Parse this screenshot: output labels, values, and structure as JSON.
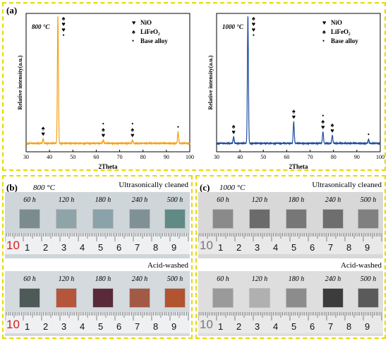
{
  "panel_a": {
    "label": "(a)",
    "chart_data": [
      {
        "type": "line",
        "title": "800 °C",
        "xlabel": "2Theta",
        "ylabel": "Relative intensity(a.u.)",
        "xlim": [
          30,
          100
        ],
        "xticks": [
          "30",
          "40",
          "50",
          "60",
          "70",
          "80",
          "90",
          "100"
        ],
        "color": "#f5a219",
        "legend": [
          {
            "symbol": "♥",
            "label": "NiO"
          },
          {
            "symbol": "♠",
            "label": "LiFeO₂"
          },
          {
            "symbol": "•",
            "label": "Base alloy"
          }
        ],
        "peaks": [
          {
            "x": 37.3,
            "h": 0.035,
            "markers": "♠♥"
          },
          {
            "x": 43.6,
            "h": 1.0,
            "markers": "♠♥♥•"
          },
          {
            "x": 63.0,
            "h": 0.025,
            "markers": "•♠♥"
          },
          {
            "x": 75.5,
            "h": 0.025,
            "markers": "•♠♥"
          },
          {
            "x": 95.0,
            "h": 0.09,
            "markers": "•"
          }
        ]
      },
      {
        "type": "line",
        "title": "1000 °C",
        "xlabel": "2Theta",
        "ylabel": "Relative intensity(a.u.)",
        "xlim": [
          30,
          100
        ],
        "xticks": [
          "30",
          "40",
          "50",
          "60",
          "70",
          "80",
          "90",
          "100"
        ],
        "color": "#1f4e9e",
        "legend": [
          {
            "symbol": "♥",
            "label": "NiO"
          },
          {
            "symbol": "♠",
            "label": "LiFeO₂"
          },
          {
            "symbol": "•",
            "label": "Base alloy"
          }
        ],
        "peaks": [
          {
            "x": 37.3,
            "h": 0.05,
            "markers": "♠♥"
          },
          {
            "x": 43.4,
            "h": 1.0,
            "markers": "♠♥♥•"
          },
          {
            "x": 63.0,
            "h": 0.17,
            "markers": "♠♥"
          },
          {
            "x": 75.5,
            "h": 0.09,
            "markers": "•♠♥"
          },
          {
            "x": 79.5,
            "h": 0.06,
            "markers": "♠♥"
          },
          {
            "x": 95.0,
            "h": 0.03,
            "markers": "•"
          }
        ]
      }
    ]
  },
  "panel_b": {
    "label": "(b)",
    "temp": "800 °C",
    "top_caption": "Ultrasonically cleaned",
    "bottom_caption": "Acid-washed",
    "times": [
      "60 h",
      "120 h",
      "180 h",
      "240 h",
      "500 h"
    ],
    "ruler": [
      "10",
      "1",
      "2",
      "3",
      "4",
      "5",
      "6",
      "7",
      "8",
      "9"
    ],
    "top_colors": [
      "#7a8c8e",
      "#8fa4a9",
      "#8aa2aa",
      "#7f9196",
      "#5f8a86"
    ],
    "bottom_colors": [
      "#4d5a58",
      "#b5553a",
      "#5a2a3a",
      "#a35a44",
      "#b0552f"
    ]
  },
  "panel_c": {
    "label": "(c)",
    "temp": "1000 °C",
    "top_caption": "Ultrasonically cleaned",
    "bottom_caption": "Acid-washed",
    "times": [
      "60 h",
      "120 h",
      "180 h",
      "240 h",
      "500 h"
    ],
    "ruler": [
      "10",
      "1",
      "2",
      "3",
      "4",
      "5",
      "6",
      "7",
      "8",
      "9"
    ],
    "top_colors": [
      "#8a8a8a",
      "#6b6b6b",
      "#777777",
      "#6e6e6e",
      "#808080"
    ],
    "bottom_colors": [
      "#9a9a9a",
      "#b0b0b0",
      "#8c8c8c",
      "#3c3c3c",
      "#5a5a5a"
    ]
  }
}
